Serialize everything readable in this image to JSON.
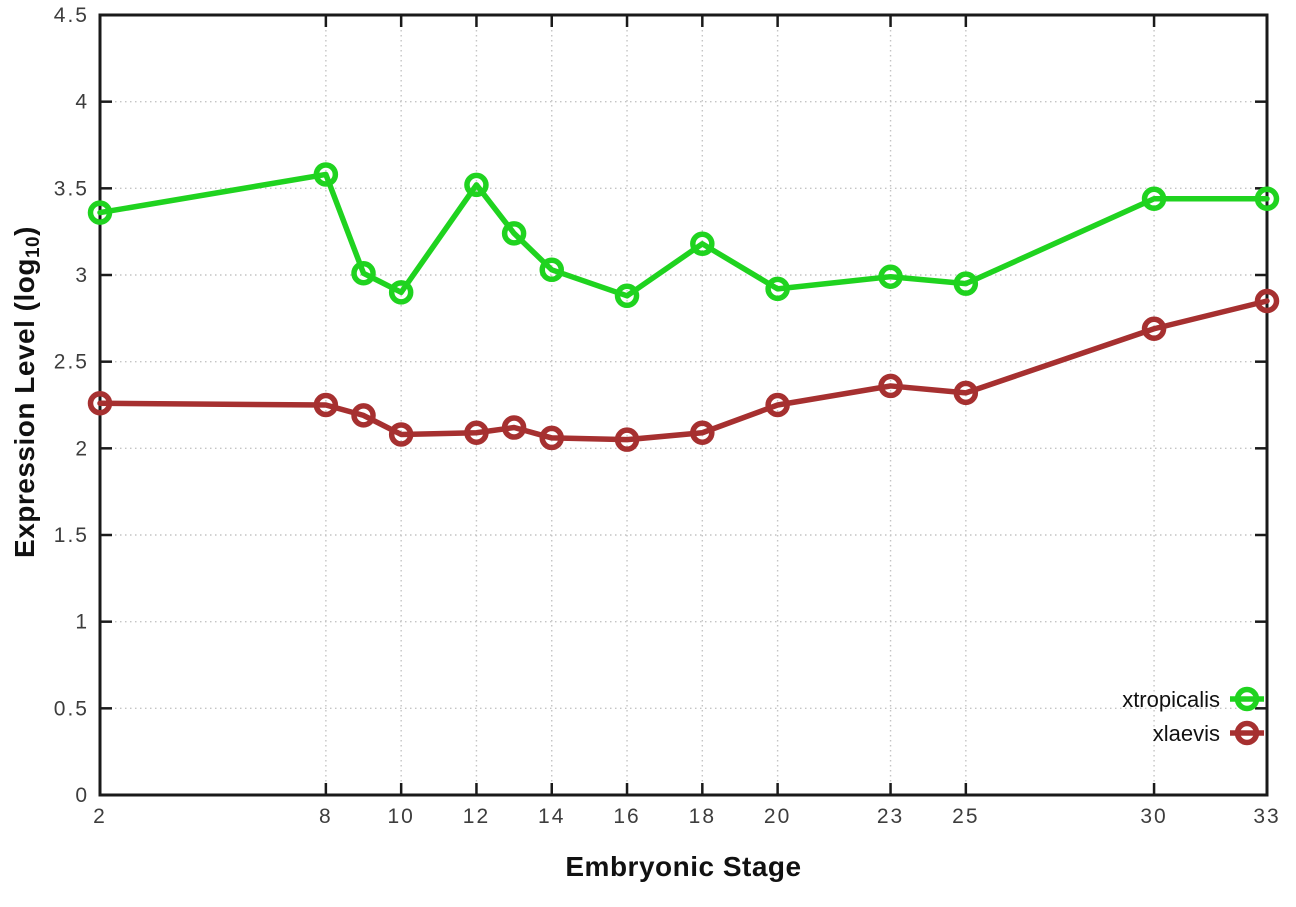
{
  "chart_data": {
    "type": "line",
    "title": "",
    "xlabel": "Embryonic Stage",
    "ylabel": "Expression Level (log10)",
    "ylabel_display": {
      "pre": "Expression Level (log",
      "sub": "10",
      "post": ")"
    },
    "x": [
      2,
      8,
      9,
      10,
      12,
      13,
      14,
      16,
      18,
      20,
      23,
      25,
      30,
      33
    ],
    "x_tick_labels": [
      2,
      8,
      10,
      12,
      14,
      16,
      18,
      20,
      23,
      25,
      30,
      33
    ],
    "y_tick_labels": [
      0,
      0.5,
      1,
      1.5,
      2,
      2.5,
      3,
      3.5,
      4,
      4.5
    ],
    "xlim": [
      2,
      33
    ],
    "ylim": [
      0,
      4.5
    ],
    "grid": "dotted",
    "legend_position": "inside-right-lower",
    "series": [
      {
        "name": "xtropicalis",
        "color": "#1fd31f",
        "values": [
          3.36,
          3.58,
          3.01,
          2.9,
          3.52,
          3.24,
          3.03,
          2.88,
          3.18,
          2.92,
          2.99,
          2.95,
          3.44,
          3.44
        ]
      },
      {
        "name": "xlaevis",
        "color": "#a63030",
        "values": [
          2.26,
          2.25,
          2.19,
          2.08,
          2.09,
          2.12,
          2.06,
          2.05,
          2.09,
          2.25,
          2.36,
          2.32,
          2.69,
          2.85
        ]
      }
    ],
    "style": {
      "grid_color": "#c4c4c4",
      "border_color": "#1a1a1a",
      "tick_label_color": "#3d3d3d",
      "legend_text_color": "#111111",
      "background": "#ffffff"
    }
  }
}
